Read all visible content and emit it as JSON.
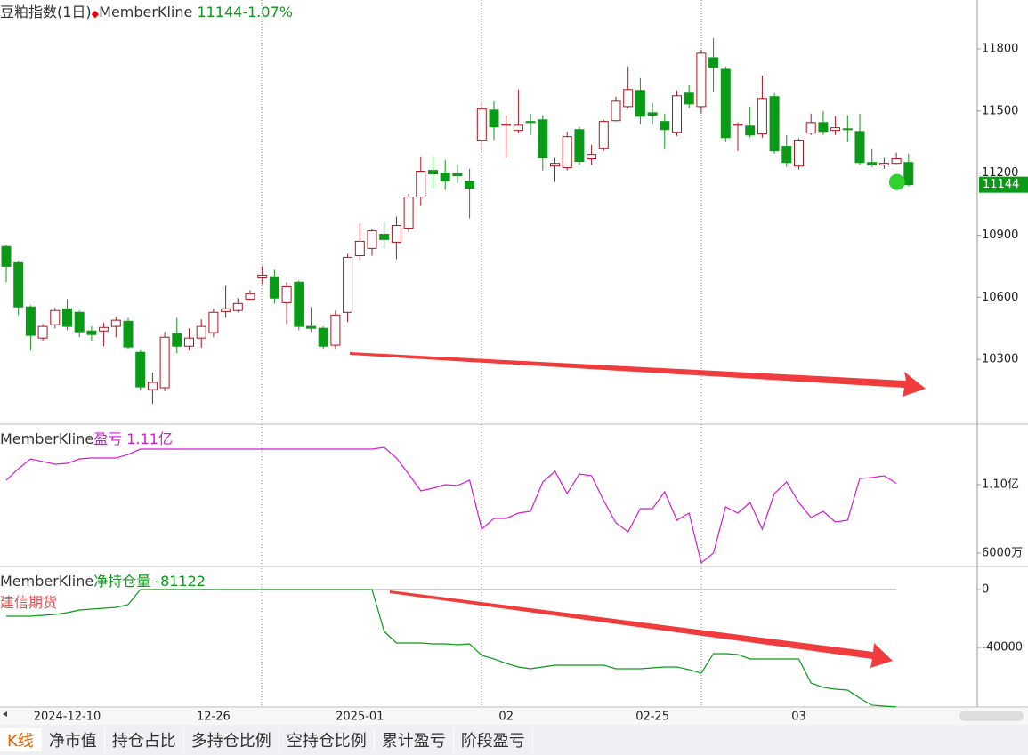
{
  "chart_data": [
    {
      "type": "candlestick",
      "title": "豆粕指数(1日)",
      "subtitle": "MemberKline",
      "change_label": "11144-1.07%",
      "categories": [
        null,
        null,
        null,
        null,
        null,
        "2024-12-10",
        null,
        null,
        null,
        null,
        null,
        null,
        null,
        null,
        null,
        null,
        null,
        "12-26",
        null,
        null,
        null,
        null,
        null,
        null,
        null,
        null,
        null,
        null,
        null,
        "2025-01",
        null,
        null,
        null,
        null,
        null,
        null,
        null,
        null,
        null,
        null,
        null,
        "02",
        null,
        null,
        null,
        null,
        null,
        null,
        null,
        null,
        null,
        null,
        null,
        "02-25",
        null,
        null,
        null,
        null,
        null,
        null,
        null,
        null,
        null,
        null,
        null,
        "03",
        null,
        null,
        null,
        null,
        null,
        null,
        null,
        null,
        null
      ],
      "open": [
        10845,
        10767,
        10553,
        10403,
        10467,
        10544,
        10527,
        10437,
        10437,
        10459,
        10484,
        10334,
        10154,
        10163,
        10424,
        10364,
        10403,
        10429,
        10531,
        10536,
        10591,
        10694,
        10699,
        10574,
        10673,
        10459,
        10450,
        10369,
        10527,
        10801,
        10836,
        10904,
        10866,
        10934,
        11084,
        11213,
        11200,
        11196,
        11161,
        11359,
        11504,
        11431,
        11406,
        11449,
        11457,
        11234,
        11226,
        11410,
        11269,
        11320,
        11453,
        11521,
        11599,
        11491,
        11449,
        11397,
        11586,
        11521,
        11757,
        11701,
        11431,
        11427,
        11389,
        11569,
        11329,
        11234,
        11393,
        11444,
        11406,
        11414,
        11401,
        11251,
        11239,
        11247,
        11251
      ],
      "high": [
        10853,
        10776,
        10561,
        10471,
        10549,
        10591,
        10536,
        10459,
        10476,
        10506,
        10501,
        10343,
        10236,
        10433,
        10501,
        10450,
        10493,
        10544,
        10656,
        10596,
        10634,
        10750,
        10733,
        10673,
        10681,
        10553,
        10459,
        10536,
        10810,
        10956,
        10930,
        10964,
        10990,
        11101,
        11281,
        11281,
        11264,
        11243,
        11221,
        11539,
        11547,
        11479,
        11603,
        11487,
        11479,
        11273,
        11401,
        11423,
        11337,
        11457,
        11569,
        11714,
        11659,
        11539,
        11487,
        11599,
        11624,
        11796,
        11851,
        11714,
        11444,
        11521,
        11671,
        11586,
        11384,
        11367,
        11487,
        11500,
        11474,
        11479,
        11487,
        11316,
        11273,
        11299,
        11294
      ],
      "low": [
        10673,
        10514,
        10343,
        10390,
        10450,
        10441,
        10407,
        10386,
        10364,
        10407,
        10351,
        10150,
        10086,
        10146,
        10330,
        10343,
        10356,
        10407,
        10501,
        10527,
        10587,
        10664,
        10570,
        10471,
        10441,
        10433,
        10351,
        10351,
        10480,
        10780,
        10801,
        10836,
        10784,
        10913,
        11041,
        11127,
        11119,
        11149,
        10981,
        11299,
        11359,
        11273,
        11393,
        11384,
        11213,
        11157,
        11213,
        11239,
        11239,
        11307,
        11449,
        11513,
        11436,
        11436,
        11316,
        11380,
        11513,
        11487,
        11590,
        11350,
        11307,
        11371,
        11371,
        11294,
        11230,
        11217,
        11384,
        11384,
        11384,
        11350,
        11239,
        11230,
        11221,
        11243,
        11136
      ],
      "close": [
        10750,
        10553,
        10416,
        10459,
        10536,
        10459,
        10433,
        10420,
        10454,
        10489,
        10360,
        10167,
        10189,
        10407,
        10364,
        10403,
        10459,
        10527,
        10544,
        10570,
        10617,
        10707,
        10596,
        10651,
        10459,
        10450,
        10364,
        10514,
        10793,
        10870,
        10921,
        10879,
        10947,
        11084,
        11209,
        11196,
        11161,
        11187,
        11127,
        11509,
        11423,
        11436,
        11431,
        11444,
        11273,
        11247,
        11376,
        11256,
        11290,
        11449,
        11547,
        11603,
        11474,
        11479,
        11410,
        11573,
        11534,
        11779,
        11710,
        11371,
        11436,
        11384,
        11560,
        11307,
        11251,
        11359,
        11444,
        11401,
        11419,
        11410,
        11251,
        11239,
        11247,
        11269,
        11144
      ],
      "up_color": "#b0131d",
      "down_color": "#0a9a18",
      "ylim": [
        9987,
        12036
      ],
      "yticks": [
        10300,
        10600,
        10900,
        11200,
        11500,
        11800
      ]
    },
    {
      "type": "line",
      "title": "MemberKline",
      "series": [
        {
          "name": "盈亏",
          "color": "#d21bd2",
          "latest_label": "1.11亿",
          "values": [
            11325,
            12168,
            12882,
            12687,
            12493,
            12558,
            12882,
            12947,
            12947,
            12947,
            13207,
            13596,
            13596,
            13596,
            13596,
            13596,
            13596,
            13596,
            13596,
            13596,
            13596,
            13596,
            13596,
            13596,
            13596,
            13596,
            13596,
            13596,
            13596,
            13596,
            13596,
            13726,
            12947,
            11779,
            10546,
            10740,
            11000,
            10935,
            11325,
            7755,
            8534,
            8534,
            8923,
            9053,
            11195,
            11974,
            10351,
            11779,
            11649,
            9832,
            8209,
            7560,
            9248,
            9248,
            10481,
            8404,
            8923,
            5289,
            6003,
            9378,
            8923,
            9702,
            7755,
            10351,
            11195,
            9702,
            8599,
            9053,
            8274,
            8404,
            11454,
            11519,
            11649,
            11100,
            null
          ]
        }
      ],
      "ylim": [
        5026,
        15416
      ],
      "yticks": [
        {
          "value": 6000,
          "label": "6000万"
        },
        {
          "value": 11000,
          "label": "1.10亿"
        }
      ]
    },
    {
      "type": "line",
      "title": "MemberKline",
      "subtitle": "建信期货",
      "series": [
        {
          "name": "净持仓量",
          "color": "#0a9a18",
          "values": [
            -18450,
            -18450,
            -18450,
            -17835,
            -17220,
            -15990,
            -14145,
            -13530,
            -12915,
            -12300,
            -10455,
            0,
            0,
            0,
            0,
            0,
            0,
            0,
            0,
            0,
            0,
            0,
            0,
            0,
            0,
            0,
            0,
            0,
            0,
            0,
            0,
            -28905,
            -36900,
            -36900,
            -36900,
            -37515,
            -37515,
            -38130,
            -37515,
            -45510,
            -47970,
            -51045,
            -53505,
            -54735,
            -53505,
            -52275,
            -52275,
            -52275,
            -52275,
            -52275,
            -54735,
            -54735,
            -54735,
            -54120,
            -53505,
            -53505,
            -55350,
            -57810,
            -44280,
            -44280,
            -44895,
            -47970,
            -47970,
            -47970,
            -47970,
            -47970,
            -64575,
            -67650,
            -68880,
            -69495,
            -75030,
            -79950,
            -80565,
            -81122,
            null
          ]
        }
      ],
      "ylim": [
        -81200,
        16000
      ],
      "yticks": [
        -40000,
        0
      ]
    }
  ],
  "tabs": [
    "K线",
    "净市值",
    "持仓占比",
    "多持仓比例",
    "空持仓比例",
    "累计盈亏",
    "阶段盈亏"
  ]
}
